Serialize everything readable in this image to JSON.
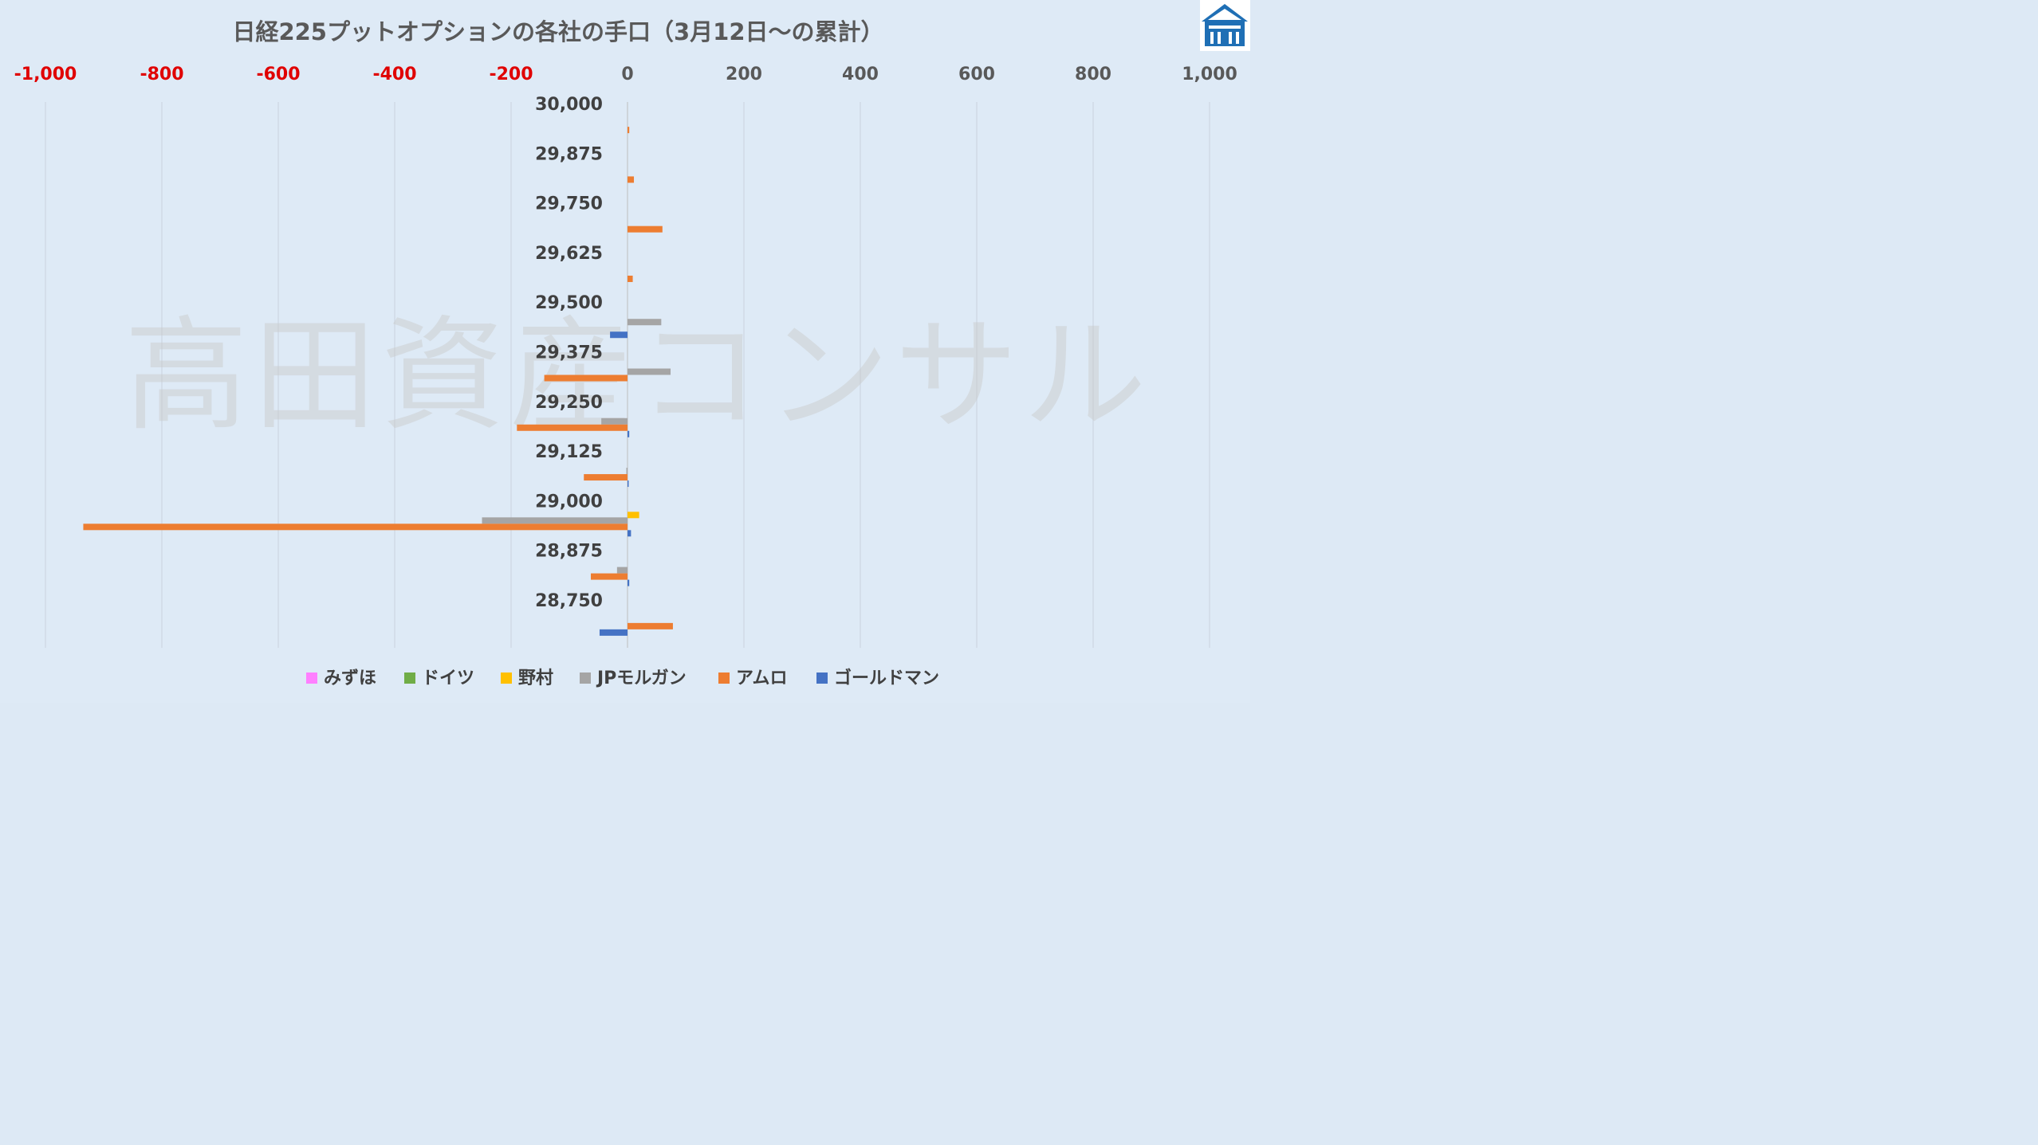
{
  "chart_data": {
    "type": "bar",
    "orientation": "horizontal",
    "title": "日経225プットオプションの各社の手口（3月12日～の累計）",
    "watermark": "高田資産コンサル",
    "xlim": [
      -1000,
      1000
    ],
    "x_ticks": [
      "-1,000",
      "-800",
      "-600",
      "-400",
      "-200",
      "0",
      "200",
      "400",
      "600",
      "800",
      "1,000"
    ],
    "x_tick_values": [
      -1000,
      -800,
      -600,
      -400,
      -200,
      0,
      200,
      400,
      600,
      800,
      1000
    ],
    "negative_tick_color": "#e00000",
    "positive_tick_color": "#595959",
    "grid": true,
    "legend_position": "bottom",
    "categories": [
      "30,000",
      "29,875",
      "29,750",
      "29,625",
      "29,500",
      "29,375",
      "29,250",
      "29,125",
      "29,000",
      "28,875",
      "28,750"
    ],
    "series": [
      {
        "name": "みずほ",
        "color": "#ff80ff",
        "values": [
          0,
          0,
          0,
          0,
          0,
          0,
          0,
          0,
          0,
          0,
          0
        ]
      },
      {
        "name": "ドイツ",
        "color": "#70ad47",
        "values": [
          0,
          0,
          0,
          0,
          0,
          0,
          0,
          0,
          0,
          0,
          0
        ]
      },
      {
        "name": "野村",
        "color": "#ffc000",
        "values": [
          0,
          0,
          0,
          0,
          0,
          0,
          0,
          0,
          20,
          0,
          0
        ]
      },
      {
        "name": "JPモルガン",
        "color": "#a5a5a5",
        "values": [
          0,
          0,
          0,
          0,
          58,
          74,
          -45,
          -2,
          -250,
          -18,
          0
        ]
      },
      {
        "name": "アムロ",
        "color": "#ed7d31",
        "values": [
          3,
          11,
          60,
          9,
          0,
          -143,
          -190,
          -75,
          -935,
          -63,
          78
        ]
      },
      {
        "name": "ゴールドマン",
        "color": "#4472c4",
        "values": [
          0,
          0,
          0,
          0,
          -30,
          0,
          3,
          2,
          6,
          3,
          -48
        ]
      }
    ]
  },
  "logo": {
    "name": "高田資産コンサル logo",
    "color": "#1f6fb5"
  }
}
